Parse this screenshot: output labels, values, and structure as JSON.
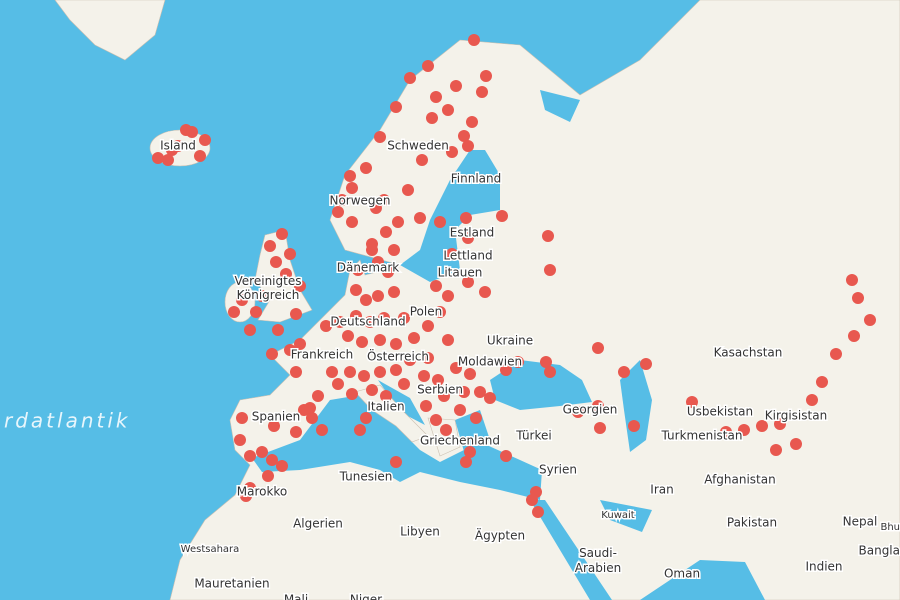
{
  "map": {
    "labels": [
      "Island",
      "Schweden",
      "Finnland",
      "Norwegen",
      "Estland",
      "Lettland",
      "Litauen",
      "Dänemark",
      "Vereinigtes Königreich",
      "Deutschland",
      "Polen",
      "Ukraine",
      "Frankreich",
      "Österreich",
      "Moldawien",
      "Kasachstan",
      "Spanien",
      "Italien",
      "Serbien",
      "Usbekistan",
      "Kirgisistan",
      "Georgien",
      "Turkmenistan",
      "Türkei",
      "Griechenland",
      "Tunesien",
      "Syrien",
      "Marokko",
      "Algerien",
      "Libyen",
      "Ägypten",
      "Iran",
      "Afghanistan",
      "Kuwait",
      "Westsahara",
      "Saudi-Arabien",
      "Pakistan",
      "Nepal",
      "Indien",
      "Oman",
      "Mauretanien",
      "Bhu",
      "Bangla",
      "Mali",
      "Niger"
    ],
    "ocean_labels": [
      "rdatlantik"
    ]
  }
}
